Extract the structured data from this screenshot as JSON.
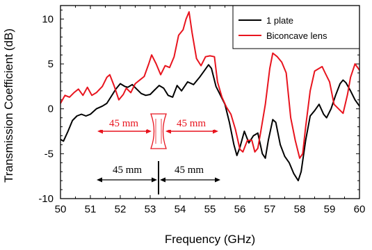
{
  "chart_data": {
    "type": "line",
    "xlabel": "Frequency (GHz)",
    "ylabel": "Transmission Coefficient (dB)",
    "xlim": [
      50,
      60
    ],
    "ylim": [
      -10,
      11.5
    ],
    "xticks": [
      "50",
      "51",
      "52",
      "53",
      "54",
      "55",
      "56",
      "57",
      "58",
      "59",
      "60"
    ],
    "yticks": [
      "-10",
      "-5",
      "0",
      "5",
      "10"
    ],
    "grid": false,
    "legend_position": "top-right",
    "series": [
      {
        "name": "1 plate",
        "color": "#000000",
        "points": [
          [
            50.0,
            -3.4
          ],
          [
            50.1,
            -3.6
          ],
          [
            50.25,
            -2.5
          ],
          [
            50.4,
            -1.3
          ],
          [
            50.55,
            -0.8
          ],
          [
            50.7,
            -0.6
          ],
          [
            50.85,
            -0.8
          ],
          [
            51.0,
            -0.6
          ],
          [
            51.2,
            0.0
          ],
          [
            51.4,
            0.3
          ],
          [
            51.55,
            0.6
          ],
          [
            51.7,
            1.4
          ],
          [
            51.85,
            2.2
          ],
          [
            52.0,
            2.8
          ],
          [
            52.15,
            2.5
          ],
          [
            52.25,
            2.4
          ],
          [
            52.4,
            2.7
          ],
          [
            52.55,
            2.2
          ],
          [
            52.7,
            1.7
          ],
          [
            52.85,
            1.5
          ],
          [
            53.0,
            1.6
          ],
          [
            53.15,
            2.1
          ],
          [
            53.3,
            2.6
          ],
          [
            53.45,
            2.3
          ],
          [
            53.6,
            1.5
          ],
          [
            53.75,
            1.3
          ],
          [
            53.9,
            2.6
          ],
          [
            54.05,
            2.0
          ],
          [
            54.25,
            3.0
          ],
          [
            54.45,
            2.7
          ],
          [
            54.65,
            3.5
          ],
          [
            54.8,
            4.2
          ],
          [
            54.95,
            4.9
          ],
          [
            55.05,
            4.5
          ],
          [
            55.2,
            2.5
          ],
          [
            55.35,
            1.5
          ],
          [
            55.5,
            0.5
          ],
          [
            55.65,
            -1.5
          ],
          [
            55.8,
            -4.0
          ],
          [
            55.9,
            -5.2
          ],
          [
            56.0,
            -4.3
          ],
          [
            56.15,
            -2.5
          ],
          [
            56.3,
            -3.8
          ],
          [
            56.45,
            -3.0
          ],
          [
            56.6,
            -2.7
          ],
          [
            56.75,
            -5.0
          ],
          [
            56.85,
            -5.5
          ],
          [
            56.95,
            -3.5
          ],
          [
            57.1,
            -1.2
          ],
          [
            57.2,
            -1.5
          ],
          [
            57.35,
            -4.0
          ],
          [
            57.5,
            -5.3
          ],
          [
            57.65,
            -6.0
          ],
          [
            57.8,
            -7.2
          ],
          [
            57.95,
            -8.0
          ],
          [
            58.05,
            -7.0
          ],
          [
            58.2,
            -3.5
          ],
          [
            58.35,
            -0.8
          ],
          [
            58.5,
            -0.2
          ],
          [
            58.65,
            0.5
          ],
          [
            58.8,
            -0.6
          ],
          [
            58.9,
            -1.0
          ],
          [
            59.05,
            0.0
          ],
          [
            59.2,
            1.5
          ],
          [
            59.35,
            2.8
          ],
          [
            59.45,
            3.2
          ],
          [
            59.55,
            2.9
          ],
          [
            59.7,
            2.0
          ],
          [
            59.85,
            1.0
          ],
          [
            60.0,
            0.3
          ]
        ]
      },
      {
        "name": "Biconcave lens",
        "color": "#e8141e",
        "points": [
          [
            50.0,
            0.6
          ],
          [
            50.15,
            1.5
          ],
          [
            50.3,
            1.3
          ],
          [
            50.45,
            1.8
          ],
          [
            50.6,
            2.2
          ],
          [
            50.75,
            1.5
          ],
          [
            50.9,
            2.4
          ],
          [
            51.05,
            1.5
          ],
          [
            51.2,
            1.8
          ],
          [
            51.4,
            2.5
          ],
          [
            51.55,
            3.5
          ],
          [
            51.65,
            3.8
          ],
          [
            51.8,
            2.5
          ],
          [
            51.95,
            1.0
          ],
          [
            52.1,
            1.6
          ],
          [
            52.2,
            2.3
          ],
          [
            52.35,
            1.8
          ],
          [
            52.5,
            2.8
          ],
          [
            52.65,
            3.2
          ],
          [
            52.8,
            3.6
          ],
          [
            52.95,
            5.0
          ],
          [
            53.05,
            6.0
          ],
          [
            53.2,
            5.0
          ],
          [
            53.35,
            3.8
          ],
          [
            53.5,
            4.8
          ],
          [
            53.65,
            4.6
          ],
          [
            53.8,
            5.8
          ],
          [
            53.95,
            8.2
          ],
          [
            54.1,
            8.8
          ],
          [
            54.2,
            10.0
          ],
          [
            54.3,
            10.8
          ],
          [
            54.4,
            8.5
          ],
          [
            54.55,
            5.6
          ],
          [
            54.7,
            4.8
          ],
          [
            54.85,
            5.8
          ],
          [
            55.0,
            5.9
          ],
          [
            55.15,
            5.8
          ],
          [
            55.25,
            3.0
          ],
          [
            55.4,
            1.3
          ],
          [
            55.55,
            0.2
          ],
          [
            55.7,
            -0.6
          ],
          [
            55.85,
            -2.3
          ],
          [
            56.0,
            -4.5
          ],
          [
            56.1,
            -4.8
          ],
          [
            56.25,
            -3.5
          ],
          [
            56.4,
            -3.5
          ],
          [
            56.5,
            -4.8
          ],
          [
            56.6,
            -4.4
          ],
          [
            56.7,
            -2.5
          ],
          [
            56.85,
            0.5
          ],
          [
            57.0,
            4.5
          ],
          [
            57.1,
            6.2
          ],
          [
            57.25,
            5.8
          ],
          [
            57.4,
            5.2
          ],
          [
            57.55,
            4.0
          ],
          [
            57.7,
            -1.0
          ],
          [
            57.85,
            -3.5
          ],
          [
            58.0,
            -5.5
          ],
          [
            58.1,
            -5.0
          ],
          [
            58.2,
            -2.0
          ],
          [
            58.35,
            2.0
          ],
          [
            58.5,
            4.2
          ],
          [
            58.65,
            4.5
          ],
          [
            58.75,
            4.7
          ],
          [
            58.85,
            4.0
          ],
          [
            59.0,
            3.0
          ],
          [
            59.15,
            0.5
          ],
          [
            59.3,
            0.0
          ],
          [
            59.45,
            -0.5
          ],
          [
            59.6,
            1.6
          ],
          [
            59.7,
            3.5
          ],
          [
            59.85,
            5.0
          ],
          [
            60.0,
            4.3
          ]
        ]
      }
    ],
    "annotations": {
      "red_left": "45 mm",
      "red_right": "45 mm",
      "black_left": "45 mm",
      "black_right": "45 mm"
    }
  }
}
